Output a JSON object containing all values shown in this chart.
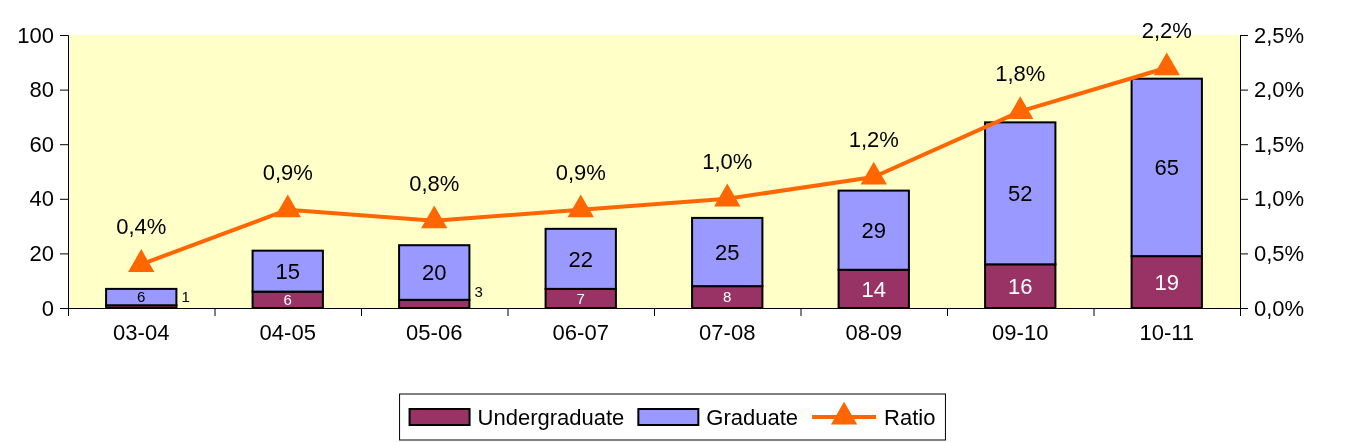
{
  "chart_data": {
    "type": "bar",
    "stacked": true,
    "categories": [
      "03-04",
      "04-05",
      "05-06",
      "06-07",
      "07-08",
      "08-09",
      "09-10",
      "10-11"
    ],
    "series": [
      {
        "name": "Undergraduate",
        "color": "#993366",
        "values": [
          1,
          6,
          3,
          7,
          8,
          14,
          16,
          19
        ],
        "value_labels": [
          "1",
          "6",
          "3",
          "7",
          "8",
          "14",
          "16",
          "19"
        ]
      },
      {
        "name": "Graduate",
        "color": "#9999ff",
        "values": [
          6,
          15,
          20,
          22,
          25,
          29,
          52,
          65
        ],
        "value_labels": [
          "6",
          "15",
          "20",
          "22",
          "25",
          "29",
          "52",
          "65"
        ]
      },
      {
        "name": "Ratio",
        "type": "line",
        "axis": "y2",
        "color": "#ff6600",
        "values": [
          0.4,
          0.9,
          0.8,
          0.9,
          1.0,
          1.2,
          1.8,
          2.2
        ],
        "value_labels": [
          "0,4%",
          "0,9%",
          "0,8%",
          "0,9%",
          "1,0%",
          "1,2%",
          "1,8%",
          "2,2%"
        ]
      }
    ],
    "ylim": [
      0,
      100
    ],
    "yticks": [
      0,
      20,
      40,
      60,
      80,
      100
    ],
    "y2lim": [
      0,
      2.5
    ],
    "y2ticks": [
      {
        "value": 0,
        "label": "0,0%"
      },
      {
        "value": 0.5,
        "label": "0,5%"
      },
      {
        "value": 1.0,
        "label": "1,0%"
      },
      {
        "value": 1.5,
        "label": "1,5%"
      },
      {
        "value": 2.0,
        "label": "2,0%"
      },
      {
        "value": 2.5,
        "label": "2,5%"
      }
    ],
    "marker": "triangle",
    "legend": "bottom"
  }
}
